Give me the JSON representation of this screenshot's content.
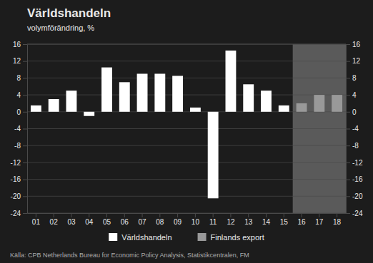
{
  "chart_data": {
    "type": "bar",
    "title": "Världshandeln",
    "subtitle": "volymförändring, %",
    "source": "Källa: CPB Netherlands Bureau for Economic Policy Analysis, Statistikcentralen, FM",
    "categories": [
      "01",
      "02",
      "03",
      "04",
      "05",
      "06",
      "07",
      "08",
      "09",
      "10",
      "11",
      "12",
      "13",
      "14",
      "15",
      "16",
      "17",
      "18"
    ],
    "series": [
      {
        "name": "Världshandeln",
        "color": "#ffffff",
        "values": [
          1.5,
          3.0,
          5.0,
          -1.0,
          10.5,
          7.0,
          9.0,
          9.0,
          8.5,
          1.0,
          -20.5,
          14.5,
          6.5,
          5.0,
          1.5,
          null,
          null,
          null
        ]
      },
      {
        "name": "Finlands export",
        "color": "#999999",
        "values": [
          null,
          null,
          null,
          null,
          null,
          null,
          null,
          null,
          null,
          null,
          null,
          null,
          null,
          null,
          null,
          2.0,
          4.0,
          4.0
        ]
      }
    ],
    "ylim": [
      -24,
      16
    ],
    "yticks": [
      -24,
      -20,
      -16,
      -12,
      -8,
      -4,
      0,
      4,
      8,
      12,
      16
    ],
    "y2lim": [
      -24,
      16
    ],
    "y2ticks": [
      -24,
      -20,
      -16,
      -12,
      -8,
      -4,
      0,
      4,
      8,
      12,
      16
    ],
    "grid": true,
    "legend": "bottom"
  }
}
